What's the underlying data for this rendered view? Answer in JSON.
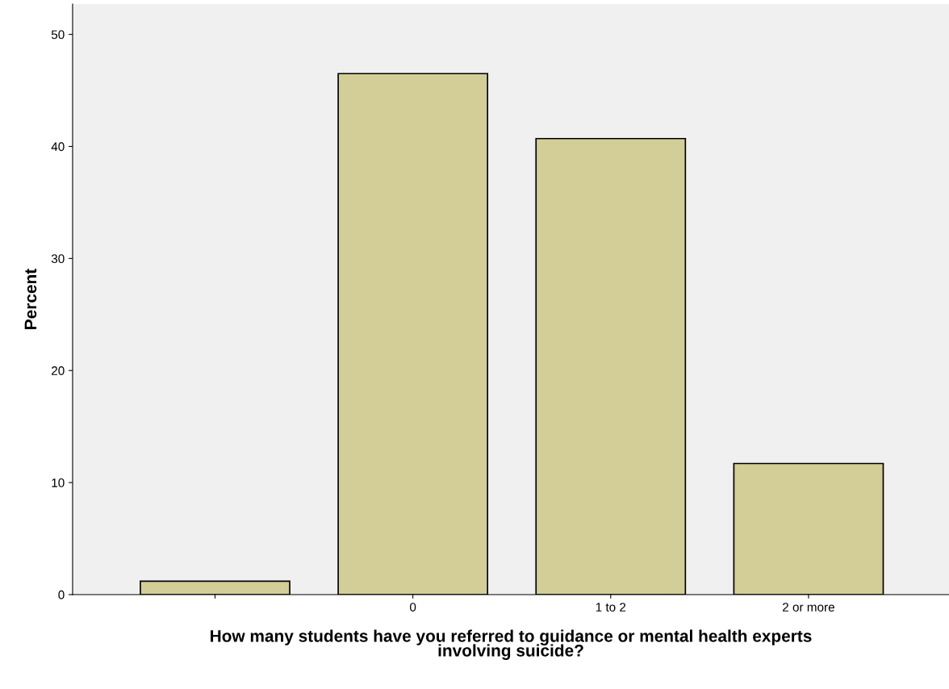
{
  "chart_data": {
    "type": "bar",
    "xlabel": "How many students have you referred to guidance or mental health experts\ninvolving suicide?",
    "ylabel": "Percent",
    "categories": [
      null,
      "0",
      "1 to 2",
      "2 or more"
    ],
    "values": [
      1.2,
      46.5,
      40.7,
      11.7
    ],
    "color": "#d3ce97",
    "ylim": [
      0,
      52.7
    ],
    "yticks": [
      0,
      10,
      20,
      30,
      40,
      50
    ],
    "grid": false,
    "legend": false
  }
}
